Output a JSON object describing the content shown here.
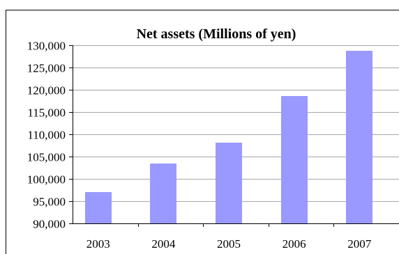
{
  "chart_data": {
    "type": "bar",
    "title": "Net assets (Millions of yen)",
    "xlabel": "",
    "ylabel": "",
    "categories": [
      "2003",
      "2004",
      "2005",
      "2006",
      "2007"
    ],
    "values": [
      97100,
      103500,
      108200,
      118600,
      128700
    ],
    "ylim": [
      90000,
      130000
    ],
    "yticks": [
      90000,
      95000,
      100000,
      105000,
      110000,
      115000,
      120000,
      125000,
      130000
    ],
    "ytick_labels": [
      "90,000",
      "95,000",
      "100,000",
      "105,000",
      "110,000",
      "115,000",
      "120,000",
      "125,000",
      "130,000"
    ],
    "grid": true,
    "legend": "none",
    "bar_color": "#9999ff"
  }
}
